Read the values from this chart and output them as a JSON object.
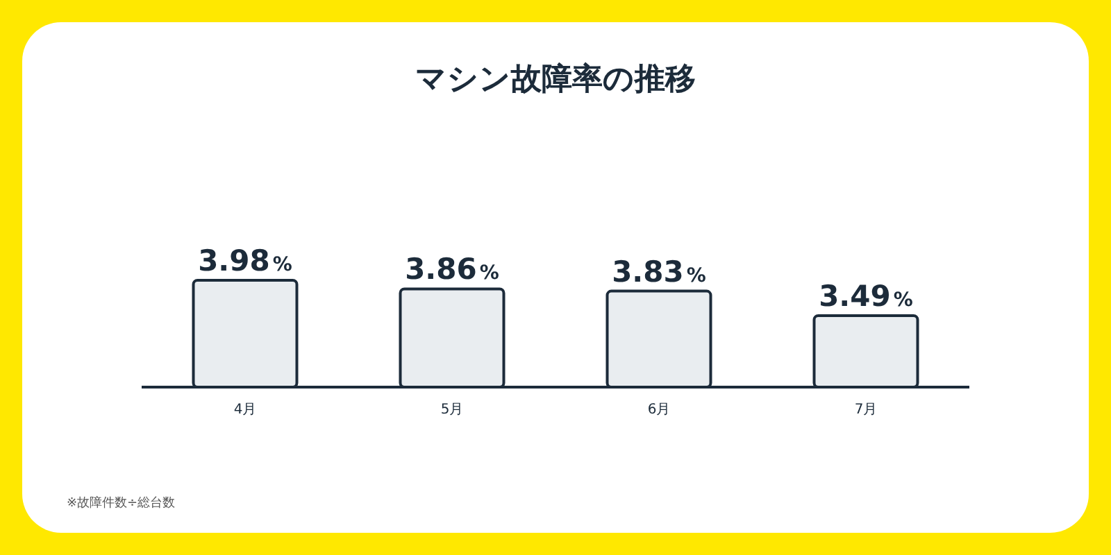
{
  "chart_data": {
    "type": "bar",
    "title": "マシン故障率の推移",
    "categories": [
      "4月",
      "5月",
      "6月",
      "7月"
    ],
    "values": [
      3.98,
      3.86,
      3.83,
      3.49
    ],
    "color": "#e9edf0",
    "ylim": [
      2.5,
      3.98
    ],
    "tick_labels": "x",
    "value_labels": [
      "3.98%",
      "3.86%",
      "3.83%",
      "3.49%"
    ],
    "annotations": [
      "※故障件数÷総台数"
    ]
  }
}
